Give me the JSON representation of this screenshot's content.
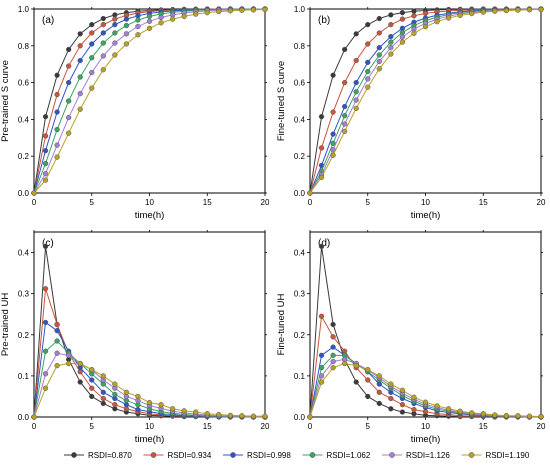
{
  "legend": [
    "RSDI=0.870",
    "RSDI=0.934",
    "RSDI=0.998",
    "RSDI=1.062",
    "RSDI=1.126",
    "RSDI=1.190"
  ],
  "colors": [
    "#3a3a3a",
    "#c8553d",
    "#2f55c9",
    "#3aa563",
    "#a57fd3",
    "#b8a225"
  ],
  "chart_data": [
    {
      "type": "line",
      "panel_tag": "(a)",
      "xlabel": "time(h)",
      "ylabel": "Pre-trained S curve",
      "xlim": [
        0,
        20
      ],
      "ylim": [
        0,
        1.0
      ],
      "xticks": [
        0,
        5,
        10,
        15,
        20
      ],
      "yticks": [
        0.0,
        0.2,
        0.4,
        0.6,
        0.8,
        1.0
      ],
      "x": [
        0,
        1,
        2,
        3,
        4,
        5,
        6,
        7,
        8,
        9,
        10,
        11,
        12,
        13,
        14,
        15,
        16,
        17,
        18,
        19,
        20
      ],
      "series": [
        {
          "name": "RSDI=0.870",
          "values": [
            0,
            0.415,
            0.64,
            0.78,
            0.865,
            0.915,
            0.948,
            0.968,
            0.98,
            0.988,
            0.992,
            0.995,
            0.997,
            0.998,
            0.999,
            1,
            1,
            1,
            1,
            1,
            1
          ]
        },
        {
          "name": "RSDI=0.934",
          "values": [
            0,
            0.31,
            0.535,
            0.69,
            0.8,
            0.87,
            0.915,
            0.945,
            0.965,
            0.978,
            0.986,
            0.991,
            0.994,
            0.996,
            0.998,
            0.999,
            1,
            1,
            1,
            1,
            1
          ]
        },
        {
          "name": "RSDI=0.998",
          "values": [
            0,
            0.23,
            0.44,
            0.6,
            0.72,
            0.81,
            0.87,
            0.915,
            0.945,
            0.963,
            0.976,
            0.984,
            0.99,
            0.993,
            0.995,
            0.997,
            0.998,
            0.999,
            1,
            1,
            1
          ]
        },
        {
          "name": "RSDI=1.062",
          "values": [
            0,
            0.16,
            0.345,
            0.5,
            0.63,
            0.735,
            0.815,
            0.87,
            0.91,
            0.94,
            0.96,
            0.973,
            0.982,
            0.988,
            0.992,
            0.995,
            0.997,
            0.998,
            0.999,
            1,
            1
          ]
        },
        {
          "name": "RSDI=1.126",
          "values": [
            0,
            0.105,
            0.26,
            0.41,
            0.54,
            0.655,
            0.745,
            0.815,
            0.865,
            0.905,
            0.933,
            0.954,
            0.968,
            0.978,
            0.985,
            0.99,
            0.993,
            0.995,
            0.997,
            0.998,
            0.999
          ]
        },
        {
          "name": "RSDI=1.190",
          "values": [
            0,
            0.07,
            0.195,
            0.325,
            0.455,
            0.57,
            0.67,
            0.75,
            0.81,
            0.86,
            0.895,
            0.925,
            0.945,
            0.96,
            0.972,
            0.98,
            0.986,
            0.99,
            0.993,
            0.995,
            0.997
          ]
        }
      ]
    },
    {
      "type": "line",
      "panel_tag": "(b)",
      "xlabel": "time(h)",
      "ylabel": "Fine-tuned S curve",
      "xlim": [
        0,
        20
      ],
      "ylim": [
        0,
        1.0
      ],
      "xticks": [
        0,
        5,
        10,
        15,
        20
      ],
      "yticks": [
        0.0,
        0.2,
        0.4,
        0.6,
        0.8,
        1.0
      ],
      "x": [
        0,
        1,
        2,
        3,
        4,
        5,
        6,
        7,
        8,
        9,
        10,
        11,
        12,
        13,
        14,
        15,
        16,
        17,
        18,
        19,
        20
      ],
      "series": [
        {
          "name": "RSDI=0.870",
          "values": [
            0,
            0.415,
            0.64,
            0.78,
            0.865,
            0.915,
            0.948,
            0.968,
            0.98,
            0.988,
            0.992,
            0.995,
            0.997,
            0.998,
            0.999,
            1,
            1,
            1,
            1,
            1,
            1
          ]
        },
        {
          "name": "RSDI=0.934",
          "values": [
            0,
            0.245,
            0.44,
            0.6,
            0.72,
            0.81,
            0.87,
            0.915,
            0.945,
            0.963,
            0.976,
            0.984,
            0.99,
            0.993,
            0.995,
            0.997,
            0.998,
            0.999,
            1,
            1,
            1
          ]
        },
        {
          "name": "RSDI=0.998",
          "values": [
            0,
            0.15,
            0.32,
            0.47,
            0.6,
            0.71,
            0.79,
            0.85,
            0.895,
            0.928,
            0.951,
            0.966,
            0.977,
            0.985,
            0.99,
            0.993,
            0.995,
            0.997,
            0.998,
            0.999,
            1
          ]
        },
        {
          "name": "RSDI=1.062",
          "values": [
            0,
            0.12,
            0.27,
            0.42,
            0.55,
            0.66,
            0.75,
            0.82,
            0.872,
            0.91,
            0.937,
            0.956,
            0.97,
            0.98,
            0.986,
            0.99,
            0.993,
            0.995,
            0.997,
            0.998,
            0.999
          ]
        },
        {
          "name": "RSDI=1.126",
          "values": [
            0,
            0.1,
            0.235,
            0.375,
            0.505,
            0.62,
            0.715,
            0.79,
            0.848,
            0.891,
            0.922,
            0.945,
            0.961,
            0.973,
            0.981,
            0.987,
            0.991,
            0.994,
            0.996,
            0.997,
            0.998
          ]
        },
        {
          "name": "RSDI=1.190",
          "values": [
            0,
            0.085,
            0.205,
            0.335,
            0.46,
            0.575,
            0.675,
            0.755,
            0.82,
            0.868,
            0.904,
            0.931,
            0.951,
            0.965,
            0.975,
            0.983,
            0.988,
            0.991,
            0.994,
            0.996,
            0.997
          ]
        }
      ]
    },
    {
      "type": "line",
      "panel_tag": "(c)",
      "xlabel": "time(h)",
      "ylabel": "Pre-trained UH",
      "xlim": [
        0,
        20
      ],
      "ylim": [
        0,
        0.45
      ],
      "xticks": [
        0,
        5,
        10,
        15,
        20
      ],
      "yticks": [
        0.0,
        0.1,
        0.2,
        0.3,
        0.4
      ],
      "x": [
        0,
        1,
        2,
        3,
        4,
        5,
        6,
        7,
        8,
        9,
        10,
        11,
        12,
        13,
        14,
        15,
        16,
        17,
        18,
        19,
        20
      ],
      "series": [
        {
          "name": "RSDI=0.870",
          "values": [
            0,
            0.415,
            0.225,
            0.14,
            0.085,
            0.05,
            0.033,
            0.02,
            0.012,
            0.008,
            0.004,
            0.003,
            0.002,
            0.001,
            0.001,
            0.001,
            0,
            0,
            0,
            0,
            0
          ]
        },
        {
          "name": "RSDI=0.934",
          "values": [
            0,
            0.312,
            0.225,
            0.155,
            0.11,
            0.07,
            0.045,
            0.03,
            0.02,
            0.013,
            0.008,
            0.005,
            0.003,
            0.002,
            0.002,
            0.001,
            0.001,
            0,
            0,
            0,
            0
          ]
        },
        {
          "name": "RSDI=0.998",
          "values": [
            0,
            0.23,
            0.21,
            0.16,
            0.12,
            0.09,
            0.06,
            0.045,
            0.03,
            0.018,
            0.013,
            0.008,
            0.006,
            0.003,
            0.002,
            0.002,
            0.001,
            0.001,
            0.001,
            0,
            0
          ]
        },
        {
          "name": "RSDI=1.062",
          "values": [
            0,
            0.16,
            0.185,
            0.155,
            0.13,
            0.105,
            0.08,
            0.055,
            0.04,
            0.03,
            0.02,
            0.013,
            0.009,
            0.006,
            0.004,
            0.003,
            0.002,
            0.001,
            0.001,
            0.001,
            0
          ]
        },
        {
          "name": "RSDI=1.126",
          "values": [
            0,
            0.105,
            0.155,
            0.15,
            0.13,
            0.115,
            0.09,
            0.07,
            0.05,
            0.04,
            0.028,
            0.021,
            0.014,
            0.01,
            0.007,
            0.005,
            0.003,
            0.002,
            0.002,
            0.001,
            0.001
          ]
        },
        {
          "name": "RSDI=1.190",
          "values": [
            0,
            0.07,
            0.125,
            0.13,
            0.13,
            0.115,
            0.1,
            0.08,
            0.06,
            0.05,
            0.035,
            0.03,
            0.02,
            0.015,
            0.012,
            0.008,
            0.006,
            0.004,
            0.003,
            0.002,
            0.002
          ]
        }
      ]
    },
    {
      "type": "line",
      "panel_tag": "(d)",
      "xlabel": "time(h)",
      "ylabel": "Fine-tuned UH",
      "xlim": [
        0,
        20
      ],
      "ylim": [
        0,
        0.45
      ],
      "xticks": [
        0,
        5,
        10,
        15,
        20
      ],
      "yticks": [
        0.0,
        0.1,
        0.2,
        0.3,
        0.4
      ],
      "x": [
        0,
        1,
        2,
        3,
        4,
        5,
        6,
        7,
        8,
        9,
        10,
        11,
        12,
        13,
        14,
        15,
        16,
        17,
        18,
        19,
        20
      ],
      "series": [
        {
          "name": "RSDI=0.870",
          "values": [
            0,
            0.415,
            0.225,
            0.14,
            0.085,
            0.05,
            0.033,
            0.02,
            0.012,
            0.008,
            0.004,
            0.003,
            0.002,
            0.001,
            0.001,
            0.001,
            0,
            0,
            0,
            0,
            0
          ]
        },
        {
          "name": "RSDI=0.934",
          "values": [
            0,
            0.245,
            0.195,
            0.16,
            0.12,
            0.09,
            0.06,
            0.045,
            0.03,
            0.018,
            0.013,
            0.008,
            0.006,
            0.003,
            0.002,
            0.002,
            0.001,
            0.001,
            0.001,
            0,
            0
          ]
        },
        {
          "name": "RSDI=0.998",
          "values": [
            0,
            0.15,
            0.17,
            0.15,
            0.13,
            0.11,
            0.08,
            0.06,
            0.045,
            0.033,
            0.023,
            0.015,
            0.011,
            0.008,
            0.005,
            0.003,
            0.002,
            0.002,
            0.001,
            0.001,
            0
          ]
        },
        {
          "name": "RSDI=1.062",
          "values": [
            0,
            0.12,
            0.15,
            0.15,
            0.13,
            0.11,
            0.09,
            0.07,
            0.052,
            0.038,
            0.027,
            0.019,
            0.014,
            0.01,
            0.006,
            0.004,
            0.003,
            0.002,
            0.002,
            0.001,
            0.001
          ]
        },
        {
          "name": "RSDI=1.126",
          "values": [
            0,
            0.1,
            0.135,
            0.14,
            0.13,
            0.115,
            0.095,
            0.075,
            0.058,
            0.043,
            0.031,
            0.023,
            0.016,
            0.012,
            0.008,
            0.006,
            0.004,
            0.003,
            0.002,
            0.001,
            0.001
          ]
        },
        {
          "name": "RSDI=1.190",
          "values": [
            0,
            0.085,
            0.12,
            0.13,
            0.125,
            0.115,
            0.1,
            0.08,
            0.065,
            0.048,
            0.036,
            0.027,
            0.02,
            0.014,
            0.01,
            0.008,
            0.005,
            0.003,
            0.003,
            0.002,
            0.001
          ]
        }
      ]
    }
  ]
}
